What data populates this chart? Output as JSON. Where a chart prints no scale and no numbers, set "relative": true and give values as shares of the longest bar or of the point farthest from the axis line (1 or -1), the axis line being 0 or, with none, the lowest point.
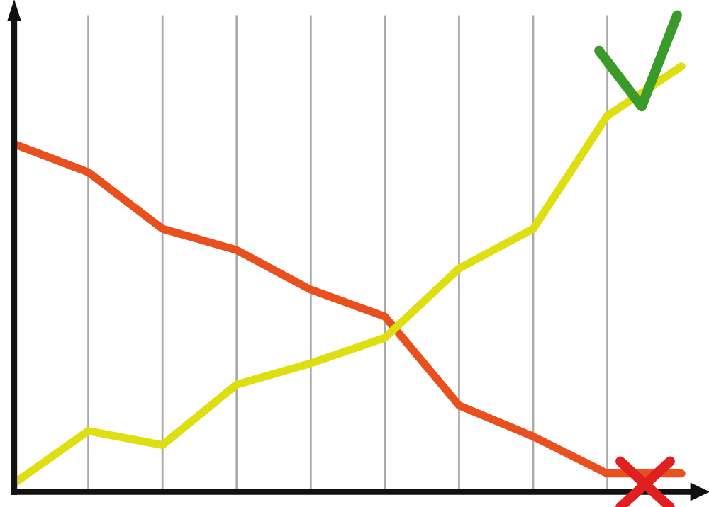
{
  "chart_data": {
    "type": "line",
    "relative": true,
    "grid": "x",
    "marker": "none",
    "line_style": "solid",
    "categories": [
      null,
      null,
      null,
      null,
      null,
      null,
      null,
      null,
      null,
      null
    ],
    "series": [
      {
        "color": "#e8501e",
        "values": [
          0.817,
          0.751,
          0.618,
          0.568,
          0.475,
          0.412,
          0.203,
          0.13,
          0.043,
          0.043
        ]
      },
      {
        "color": "#dede10",
        "values": [
          0.02,
          0.143,
          0.11,
          0.252,
          0.302,
          0.362,
          0.525,
          0.618,
          0.884,
          1.0
        ]
      }
    ]
  }
}
